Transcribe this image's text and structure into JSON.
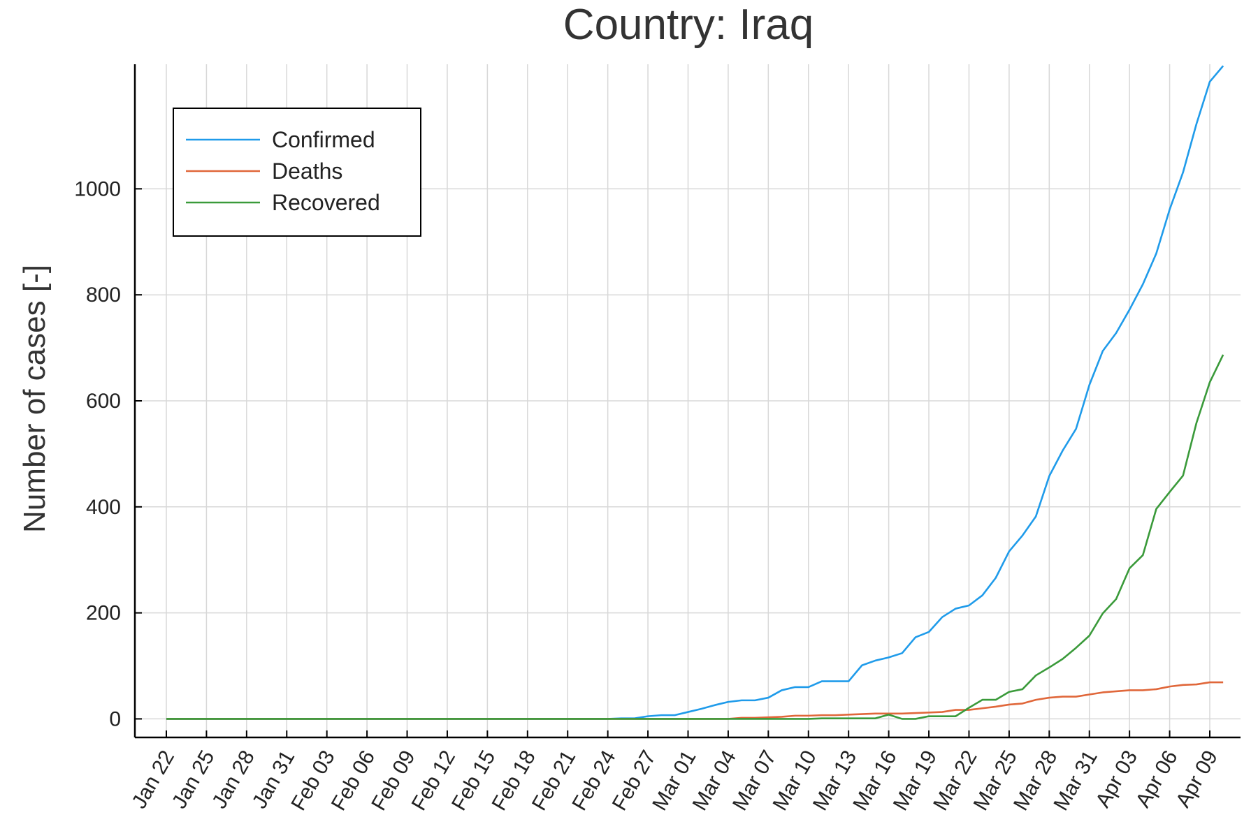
{
  "chart_data": {
    "type": "line",
    "title": "Country: Iraq",
    "xlabel": "",
    "ylabel": "Number of cases [-]",
    "ylim": [
      -35,
      1235
    ],
    "yticks": [
      0,
      200,
      400,
      600,
      800,
      1000
    ],
    "x_start": "2020-01-22",
    "x_end": "2020-04-09",
    "xtick_labels": [
      "Jan 22",
      "Jan 25",
      "Jan 28",
      "Jan 31",
      "Feb 03",
      "Feb 06",
      "Feb 09",
      "Feb 12",
      "Feb 15",
      "Feb 18",
      "Feb 21",
      "Feb 24",
      "Feb 27",
      "Mar 01",
      "Mar 04",
      "Mar 07",
      "Mar 10",
      "Mar 13",
      "Mar 16",
      "Mar 19",
      "Mar 22",
      "Mar 25",
      "Mar 28",
      "Mar 31",
      "Apr 03",
      "Apr 06",
      "Apr 09"
    ],
    "grid": true,
    "legend_position": "top-left",
    "series": [
      {
        "name": "Confirmed",
        "color": "#1f9bea",
        "values": [
          0,
          0,
          0,
          0,
          0,
          0,
          0,
          0,
          0,
          0,
          0,
          0,
          0,
          0,
          0,
          0,
          0,
          0,
          0,
          0,
          0,
          0,
          0,
          0,
          0,
          0,
          0,
          0,
          0,
          0,
          0,
          0,
          0,
          0,
          1,
          1,
          5,
          7,
          7,
          13,
          19,
          26,
          32,
          35,
          35,
          40,
          54,
          60,
          60,
          71,
          71,
          71,
          101,
          110,
          116,
          124,
          154,
          164,
          192,
          208,
          214,
          233,
          266,
          316,
          346,
          382,
          458,
          506,
          547,
          630,
          694,
          728,
          772,
          820,
          878,
          961,
          1031,
          1122,
          1202,
          1232
        ]
      },
      {
        "name": "Deaths",
        "color": "#e0673a",
        "values": [
          0,
          0,
          0,
          0,
          0,
          0,
          0,
          0,
          0,
          0,
          0,
          0,
          0,
          0,
          0,
          0,
          0,
          0,
          0,
          0,
          0,
          0,
          0,
          0,
          0,
          0,
          0,
          0,
          0,
          0,
          0,
          0,
          0,
          0,
          0,
          0,
          0,
          0,
          0,
          0,
          0,
          0,
          0,
          2,
          2,
          3,
          4,
          6,
          6,
          7,
          7,
          8,
          9,
          10,
          10,
          10,
          11,
          12,
          13,
          17,
          17,
          20,
          23,
          27,
          29,
          36,
          40,
          42,
          42,
          46,
          50,
          52,
          54,
          54,
          56,
          61,
          64,
          65,
          69,
          69
        ]
      },
      {
        "name": "Recovered",
        "color": "#3a9a3a",
        "values": [
          0,
          0,
          0,
          0,
          0,
          0,
          0,
          0,
          0,
          0,
          0,
          0,
          0,
          0,
          0,
          0,
          0,
          0,
          0,
          0,
          0,
          0,
          0,
          0,
          0,
          0,
          0,
          0,
          0,
          0,
          0,
          0,
          0,
          0,
          0,
          0,
          0,
          0,
          0,
          0,
          0,
          0,
          0,
          0,
          0,
          0,
          0,
          0,
          0,
          1,
          1,
          1,
          1,
          1,
          8,
          0,
          0,
          5,
          5,
          5,
          21,
          36,
          36,
          51,
          56,
          82,
          97,
          113,
          134,
          157,
          199,
          226,
          284,
          309,
          396,
          428,
          459,
          558,
          635,
          687
        ]
      }
    ]
  }
}
